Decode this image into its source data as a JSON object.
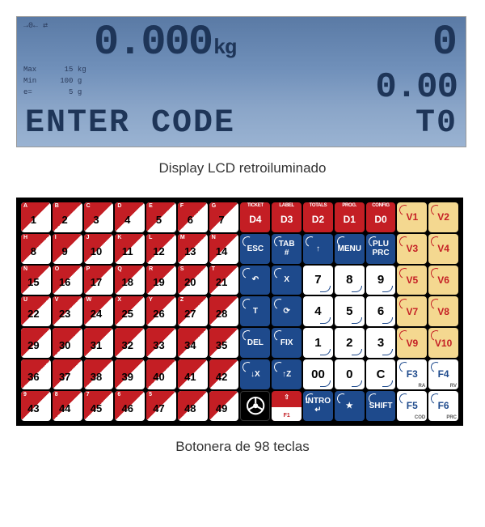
{
  "lcd": {
    "indicators": "→0←\n⇄",
    "weight_value": "0.000",
    "weight_unit": "kg",
    "count": "0",
    "limits": {
      "max_label": "Max",
      "max_val": "15",
      "max_unit": "kg",
      "min_label": "Min",
      "min_val": "100",
      "min_unit": "g",
      "e_label": "e=",
      "e_val": "5",
      "e_unit": "g"
    },
    "price": "0.00",
    "message": "ENTER  CODE",
    "t0": "T0"
  },
  "caption_lcd": "Display LCD retroiluminado",
  "caption_keys": "Botonera de 98 teclas",
  "colors": {
    "lcd_bg_top": "#5a7aa5",
    "lcd_bg_bot": "#9ab3d2",
    "lcd_fg": "#1e3558",
    "red": "#c41e24",
    "blue": "#1e4a8c",
    "yellow": "#f4d890",
    "black": "#000000",
    "white": "#ffffff"
  },
  "keyboard": {
    "plu_letters": [
      "A",
      "B",
      "C",
      "D",
      "E",
      "F",
      "G",
      "H",
      "I",
      "J",
      "K",
      "L",
      "M",
      "N",
      "Ñ",
      "O",
      "P",
      "Q",
      "R",
      "S",
      "T",
      "U",
      "V",
      "W",
      "X",
      "Y",
      "Z",
      "",
      "",
      "",
      "",
      "",
      "",
      "",
      "",
      "",
      "",
      "",
      "",
      "",
      "",
      "",
      "",
      "",
      "9",
      "8",
      "7",
      "6",
      "5"
    ],
    "rows": [
      [
        {
          "t": "num",
          "m": "1",
          "a": "A"
        },
        {
          "t": "num",
          "m": "2",
          "a": "B"
        },
        {
          "t": "num",
          "m": "3",
          "a": "C"
        },
        {
          "t": "num",
          "m": "4",
          "a": "D"
        },
        {
          "t": "num",
          "m": "5",
          "a": "E"
        },
        {
          "t": "num",
          "m": "6",
          "a": "F"
        },
        {
          "t": "num",
          "m": "7",
          "a": "G"
        },
        {
          "t": "red",
          "top": "TICKET",
          "m": "D4"
        },
        {
          "t": "red",
          "top": "LABEL",
          "m": "D3"
        },
        {
          "t": "red",
          "top": "TOTALS",
          "m": "D2"
        },
        {
          "t": "red",
          "top": "PROG.",
          "m": "D1"
        },
        {
          "t": "red",
          "top": "CONFIG",
          "m": "D0"
        },
        {
          "t": "yel",
          "m": "V1"
        },
        {
          "t": "yel",
          "m": "V2"
        }
      ],
      [
        {
          "t": "num",
          "m": "8",
          "a": "H"
        },
        {
          "t": "num",
          "m": "9",
          "a": "I"
        },
        {
          "t": "num",
          "m": "10",
          "a": "J"
        },
        {
          "t": "num",
          "m": "11",
          "a": "K"
        },
        {
          "t": "num",
          "m": "12",
          "a": "L"
        },
        {
          "t": "num",
          "m": "13",
          "a": "M"
        },
        {
          "t": "num",
          "m": "14",
          "a": "N"
        },
        {
          "t": "blue",
          "m": "ESC"
        },
        {
          "t": "blue",
          "m": "TAB\n#"
        },
        {
          "t": "blue",
          "m": "↑"
        },
        {
          "t": "blue",
          "m": "MENU"
        },
        {
          "t": "blue",
          "m": "PLU\nPRC"
        },
        {
          "t": "yel",
          "m": "V3"
        },
        {
          "t": "yel",
          "m": "V4"
        }
      ],
      [
        {
          "t": "num",
          "m": "15",
          "a": "Ñ"
        },
        {
          "t": "num",
          "m": "16",
          "a": "O"
        },
        {
          "t": "num",
          "m": "17",
          "a": "P"
        },
        {
          "t": "num",
          "m": "18",
          "a": "Q"
        },
        {
          "t": "num",
          "m": "19",
          "a": "R"
        },
        {
          "t": "num",
          "m": "20",
          "a": "S"
        },
        {
          "t": "num",
          "m": "21",
          "a": "T"
        },
        {
          "t": "blue",
          "m": "↶"
        },
        {
          "t": "blue",
          "m": "X"
        },
        {
          "t": "wht",
          "m": "7"
        },
        {
          "t": "wht",
          "m": "8"
        },
        {
          "t": "wht",
          "m": "9"
        },
        {
          "t": "yel",
          "m": "V5"
        },
        {
          "t": "yel",
          "m": "V6"
        }
      ],
      [
        {
          "t": "num",
          "m": "22",
          "a": "U"
        },
        {
          "t": "num",
          "m": "23",
          "a": "V"
        },
        {
          "t": "num",
          "m": "24",
          "a": "W"
        },
        {
          "t": "num",
          "m": "25",
          "a": "X"
        },
        {
          "t": "num",
          "m": "26",
          "a": "Y"
        },
        {
          "t": "num",
          "m": "27",
          "a": "Z"
        },
        {
          "t": "num",
          "m": "28",
          "a": ""
        },
        {
          "t": "blue",
          "m": "T"
        },
        {
          "t": "blue",
          "m": "⟳"
        },
        {
          "t": "wht",
          "m": "4"
        },
        {
          "t": "wht",
          "m": "5"
        },
        {
          "t": "wht",
          "m": "6"
        },
        {
          "t": "yel",
          "m": "V7"
        },
        {
          "t": "yel",
          "m": "V8"
        }
      ],
      [
        {
          "t": "num",
          "m": "29",
          "a": ""
        },
        {
          "t": "num",
          "m": "30",
          "a": ""
        },
        {
          "t": "num",
          "m": "31",
          "a": ""
        },
        {
          "t": "num",
          "m": "32",
          "a": ""
        },
        {
          "t": "num",
          "m": "33",
          "a": ""
        },
        {
          "t": "num",
          "m": "34",
          "a": ""
        },
        {
          "t": "num",
          "m": "35",
          "a": ""
        },
        {
          "t": "blue",
          "m": "DEL"
        },
        {
          "t": "blue",
          "m": "FIX"
        },
        {
          "t": "wht",
          "m": "1"
        },
        {
          "t": "wht",
          "m": "2"
        },
        {
          "t": "wht",
          "m": "3"
        },
        {
          "t": "yel",
          "m": "V9"
        },
        {
          "t": "yel",
          "m": "V10"
        }
      ],
      [
        {
          "t": "num",
          "m": "36",
          "a": ""
        },
        {
          "t": "num",
          "m": "37",
          "a": ""
        },
        {
          "t": "num",
          "m": "38",
          "a": ""
        },
        {
          "t": "num",
          "m": "39",
          "a": ""
        },
        {
          "t": "num",
          "m": "40",
          "a": ""
        },
        {
          "t": "num",
          "m": "41",
          "a": ""
        },
        {
          "t": "num",
          "m": "42",
          "a": ""
        },
        {
          "t": "blue",
          "m": "↓X"
        },
        {
          "t": "blue",
          "m": "↑Z"
        },
        {
          "t": "wht",
          "m": "00"
        },
        {
          "t": "wht",
          "m": "0"
        },
        {
          "t": "wht",
          "m": "C"
        },
        {
          "t": "wb",
          "m": "F3",
          "s": "RA"
        },
        {
          "t": "wb",
          "m": "F4",
          "s": "RV"
        }
      ],
      [
        {
          "t": "num",
          "m": "43",
          "a": "9"
        },
        {
          "t": "num",
          "m": "44",
          "a": "8"
        },
        {
          "t": "num",
          "m": "45",
          "a": "7"
        },
        {
          "t": "num",
          "m": "46",
          "a": "6"
        },
        {
          "t": "num",
          "m": "47",
          "a": "5"
        },
        {
          "t": "num",
          "m": "48",
          "a": ""
        },
        {
          "t": "num",
          "m": "49",
          "a": ""
        },
        {
          "t": "steer"
        },
        {
          "t": "rw",
          "t1": "⇧",
          "t2": "F1"
        },
        {
          "t": "blue",
          "m": "INTRO\n↵"
        },
        {
          "t": "blue",
          "m": "★"
        },
        {
          "t": "blue",
          "m": "SHIFT"
        },
        {
          "t": "wb",
          "m": "F5",
          "s": "COD"
        },
        {
          "t": "wb",
          "m": "F6",
          "s": "PRC"
        }
      ]
    ]
  }
}
